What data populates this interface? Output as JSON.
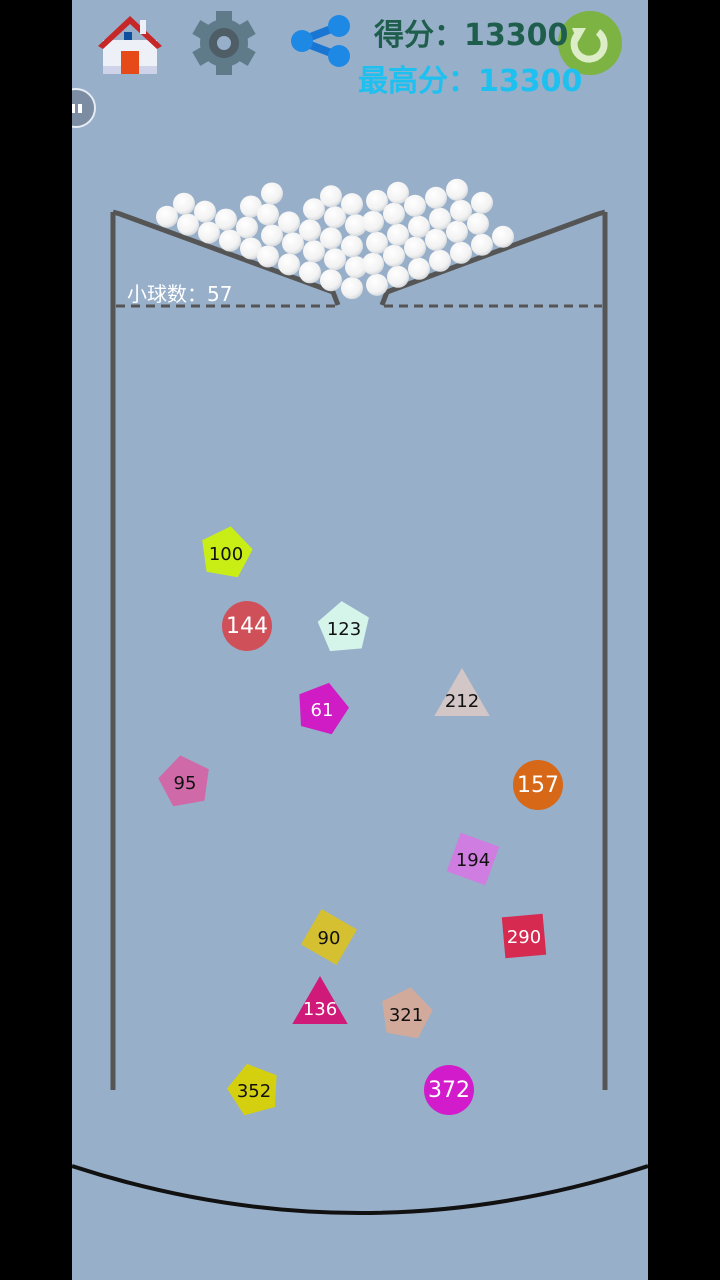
{
  "header": {
    "home_icon": "home-icon",
    "settings_icon": "gear-icon",
    "share_icon": "share-icon",
    "restart_icon": "refresh-icon",
    "score_label": "得分：13300",
    "best_label": "最高分：13300"
  },
  "game": {
    "ball_count_label": "小球数：57",
    "background_color": "#97afc9",
    "blocks": [
      {
        "value": "100",
        "shape": "pentagon",
        "color": "#c8ee16",
        "text_color": "#111"
      },
      {
        "value": "144",
        "shape": "circle",
        "color": "#d0505a",
        "text_color": "#fff"
      },
      {
        "value": "123",
        "shape": "pentagon",
        "color": "#d6f5ea",
        "text_color": "#111"
      },
      {
        "value": "61",
        "shape": "pentagon",
        "color": "#d01cc4",
        "text_color": "#fff"
      },
      {
        "value": "212",
        "shape": "triangle",
        "color": "#d2c6c6",
        "text_color": "#111"
      },
      {
        "value": "95",
        "shape": "pentagon",
        "color": "#d069a8",
        "text_color": "#111"
      },
      {
        "value": "157",
        "shape": "circle",
        "color": "#d66818",
        "text_color": "#fff"
      },
      {
        "value": "194",
        "shape": "square",
        "color": "#cf7de0",
        "text_color": "#111"
      },
      {
        "value": "90",
        "shape": "square",
        "color": "#d4c030",
        "text_color": "#111"
      },
      {
        "value": "290",
        "shape": "square",
        "color": "#d62a50",
        "text_color": "#fff"
      },
      {
        "value": "136",
        "shape": "triangle",
        "color": "#d01a7a",
        "text_color": "#fff"
      },
      {
        "value": "321",
        "shape": "pentagon",
        "color": "#d2aa9c",
        "text_color": "#111"
      },
      {
        "value": "352",
        "shape": "pentagon",
        "color": "#d4d010",
        "text_color": "#111"
      },
      {
        "value": "372",
        "shape": "circle",
        "color": "#d21ccc",
        "text_color": "#fff"
      }
    ]
  }
}
